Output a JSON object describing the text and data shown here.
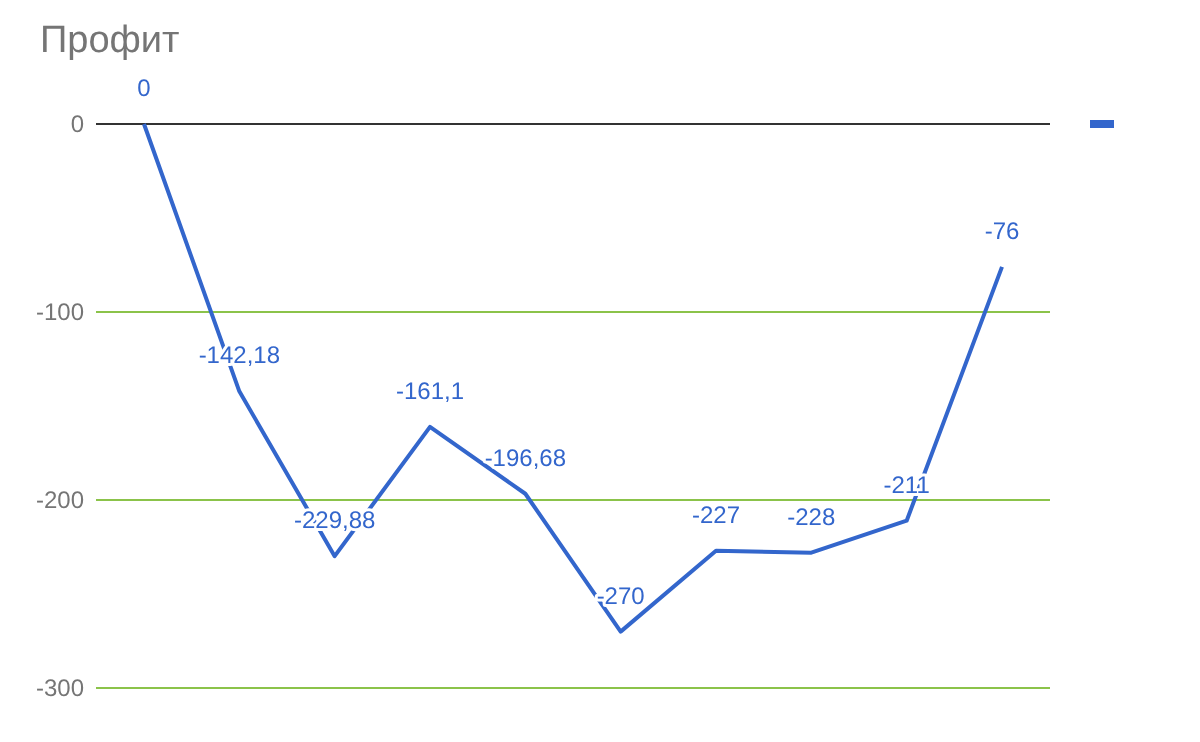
{
  "chart_data": {
    "type": "line",
    "title": "Профит",
    "categories": [
      null,
      null,
      null,
      null,
      null,
      null,
      null,
      null,
      null,
      null
    ],
    "series": [
      {
        "color": "#3366cc",
        "values": [
          0,
          -142.18,
          -229.88,
          -161.1,
          -196.68,
          -270,
          -227,
          -228,
          -211,
          -76
        ],
        "value_labels": [
          "0",
          "-142,18",
          "-229,88",
          "-161,1",
          "-196,68",
          "-270",
          "-227",
          "-228",
          "-211",
          "-76"
        ]
      }
    ],
    "ylim": [
      -300,
      0
    ],
    "yticks": [
      0,
      -100,
      -200,
      -300
    ],
    "grid": "y",
    "marker": "none",
    "line_style": "solid"
  }
}
